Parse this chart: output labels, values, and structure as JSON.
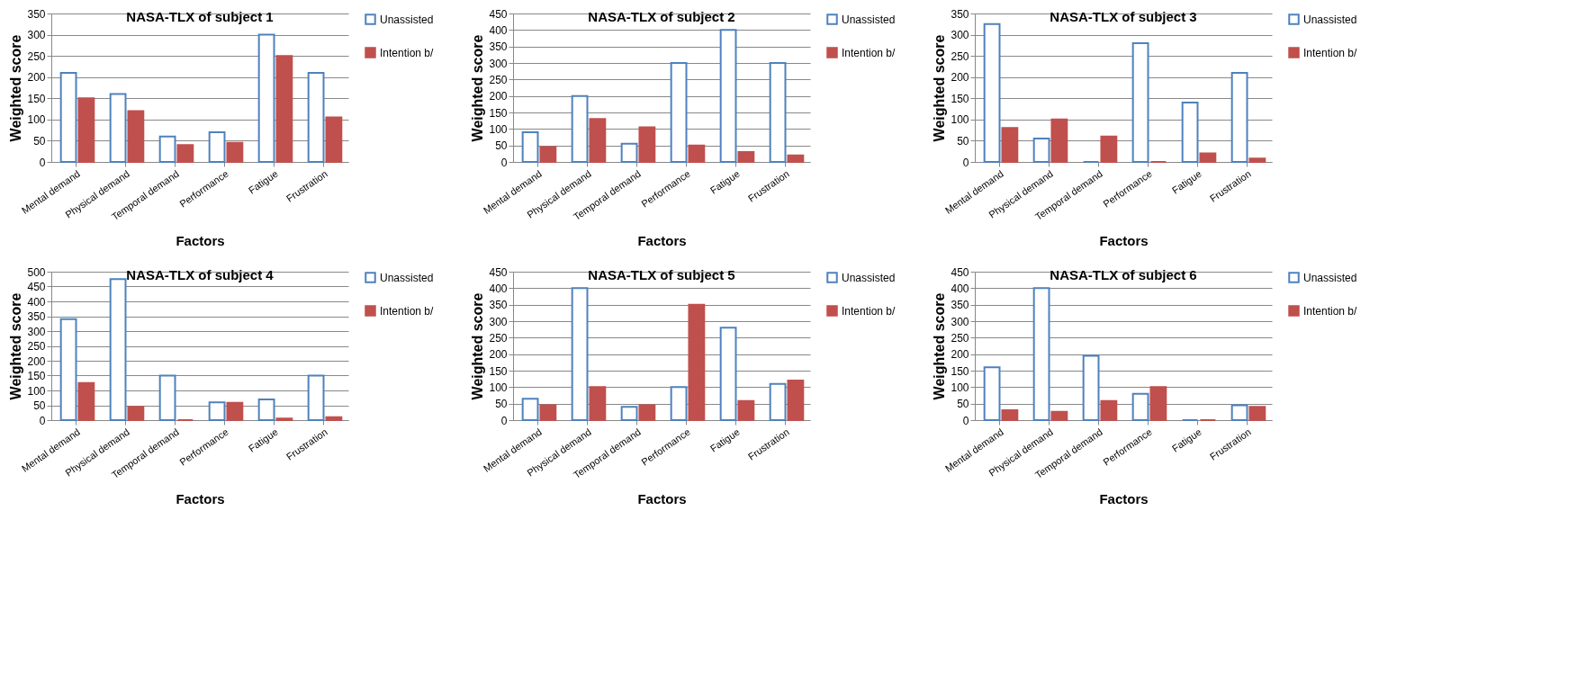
{
  "chart_data": [
    {
      "type": "bar",
      "title": "NASA-TLX of subject 1",
      "xlabel": "Factors",
      "ylabel": "Weighted score",
      "categories": [
        "Mental demand",
        "Physical demand",
        "Temporal demand",
        "Performance",
        "Fatigue",
        "Frustration"
      ],
      "series": [
        {
          "name": "Unassisted",
          "color": "#4f81bd",
          "values": [
            210,
            160,
            60,
            70,
            300,
            210
          ]
        },
        {
          "name": "Intention b/",
          "color": "#c0504d",
          "values": [
            150,
            120,
            40,
            45,
            250,
            105
          ]
        }
      ],
      "ylim": [
        0,
        350
      ],
      "yticks": [
        0,
        50,
        100,
        150,
        200,
        250,
        300,
        350
      ],
      "grid": "y",
      "legend": "right"
    },
    {
      "type": "bar",
      "title": "NASA-TLX of subject 2",
      "xlabel": "Factors",
      "ylabel": "Weighted score",
      "categories": [
        "Mental demand",
        "Physical demand",
        "Temporal demand",
        "Performance",
        "Fatigue",
        "Frustration"
      ],
      "series": [
        {
          "name": "Unassisted",
          "color": "#4f81bd",
          "values": [
            90,
            200,
            55,
            300,
            400,
            300
          ]
        },
        {
          "name": "Intention b/",
          "color": "#c0504d",
          "values": [
            45,
            130,
            105,
            50,
            30,
            20
          ]
        }
      ],
      "ylim": [
        0,
        450
      ],
      "yticks": [
        0,
        50,
        100,
        150,
        200,
        250,
        300,
        350,
        400,
        450
      ],
      "grid": "y",
      "legend": "right"
    },
    {
      "type": "bar",
      "title": "NASA-TLX of subject 3",
      "xlabel": "Factors",
      "ylabel": "Weighted score",
      "categories": [
        "Mental demand",
        "Physical demand",
        "Temporal demand",
        "Performance",
        "Fatigue",
        "Frustration"
      ],
      "series": [
        {
          "name": "Unassisted",
          "color": "#4f81bd",
          "values": [
            325,
            55,
            0,
            280,
            140,
            210
          ]
        },
        {
          "name": "Intention b/",
          "color": "#c0504d",
          "values": [
            80,
            100,
            60,
            0,
            20,
            8
          ]
        }
      ],
      "ylim": [
        0,
        350
      ],
      "yticks": [
        0,
        50,
        100,
        150,
        200,
        250,
        300,
        350
      ],
      "grid": "y",
      "legend": "right"
    },
    {
      "type": "bar",
      "title": "NASA-TLX of subject 4",
      "xlabel": "Factors",
      "ylabel": "Weighted score",
      "categories": [
        "Mental demand",
        "Physical demand",
        "Temporal demand",
        "Performance",
        "Fatigue",
        "Frustration"
      ],
      "series": [
        {
          "name": "Unassisted",
          "color": "#4f81bd",
          "values": [
            340,
            475,
            150,
            60,
            70,
            150
          ]
        },
        {
          "name": "Intention b/",
          "color": "#c0504d",
          "values": [
            125,
            45,
            0,
            58,
            5,
            10
          ]
        }
      ],
      "ylim": [
        0,
        500
      ],
      "yticks": [
        0,
        50,
        100,
        150,
        200,
        250,
        300,
        350,
        400,
        450,
        500
      ],
      "grid": "y",
      "legend": "right"
    },
    {
      "type": "bar",
      "title": "NASA-TLX of subject 5",
      "xlabel": "Factors",
      "ylabel": "Weighted score",
      "categories": [
        "Mental demand",
        "Physical demand",
        "Temporal demand",
        "Performance",
        "Fatigue",
        "Frustration"
      ],
      "series": [
        {
          "name": "Unassisted",
          "color": "#4f81bd",
          "values": [
            65,
            400,
            40,
            100,
            280,
            110
          ]
        },
        {
          "name": "Intention b/",
          "color": "#c0504d",
          "values": [
            45,
            100,
            45,
            350,
            58,
            120
          ]
        }
      ],
      "ylim": [
        0,
        450
      ],
      "yticks": [
        0,
        50,
        100,
        150,
        200,
        250,
        300,
        350,
        400,
        450
      ],
      "grid": "y",
      "legend": "right"
    },
    {
      "type": "bar",
      "title": "NASA-TLX of subject 6",
      "xlabel": "Factors",
      "ylabel": "Weighted score",
      "categories": [
        "Mental demand",
        "Physical demand",
        "Temporal demand",
        "Performance",
        "Fatigue",
        "Frustration"
      ],
      "series": [
        {
          "name": "Unassisted",
          "color": "#4f81bd",
          "values": [
            160,
            400,
            195,
            80,
            0,
            45
          ]
        },
        {
          "name": "Intention b/",
          "color": "#c0504d",
          "values": [
            30,
            25,
            58,
            100,
            0,
            40
          ]
        }
      ],
      "ylim": [
        0,
        450
      ],
      "yticks": [
        0,
        50,
        100,
        150,
        200,
        250,
        300,
        350,
        400,
        450
      ],
      "grid": "y",
      "legend": "right"
    }
  ]
}
